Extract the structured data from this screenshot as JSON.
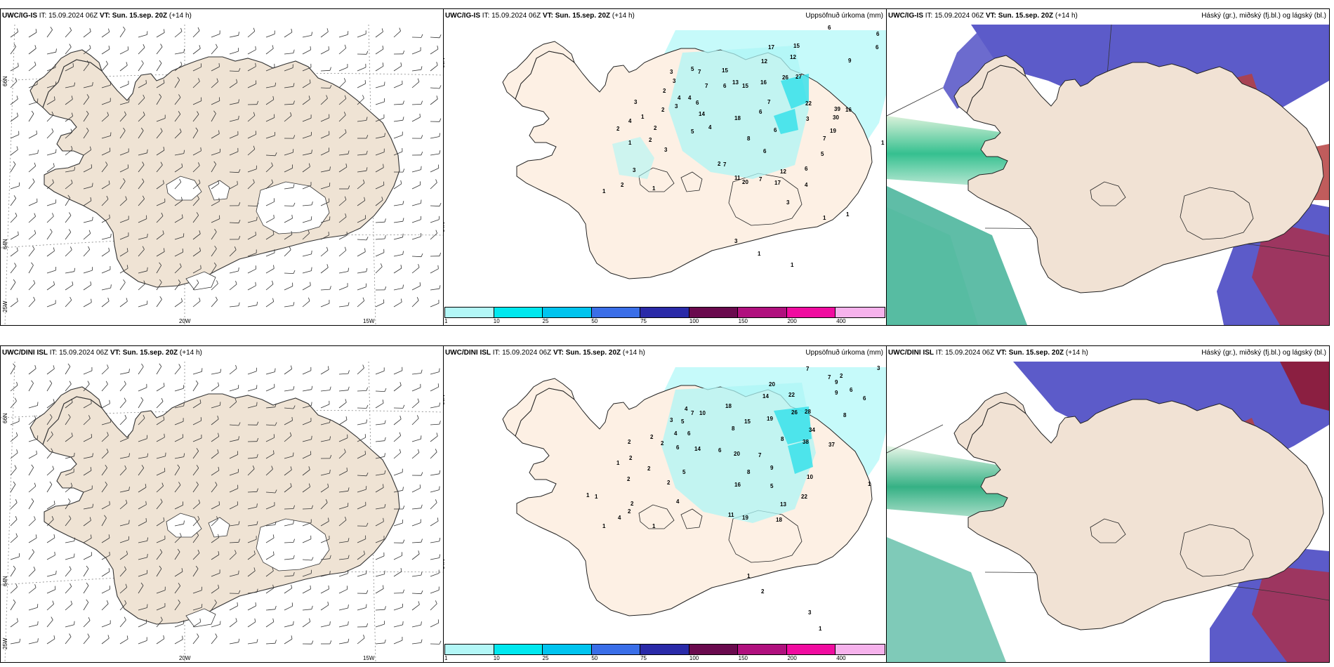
{
  "panels": [
    {
      "id": "r1c1",
      "model": "UWC/IG-IS",
      "it_label": "IT:",
      "it": "15.09.2024 06Z",
      "vt_label": "VT:",
      "vt": "Sun. 15.sep. 20Z",
      "lead": "(+14 h)",
      "field": ""
    },
    {
      "id": "r1c2",
      "model": "UWC/IG-IS",
      "it_label": "IT:",
      "it": "15.09.2024 06Z",
      "vt_label": "VT:",
      "vt": "Sun. 15.sep. 20Z",
      "lead": "(+14 h)",
      "field": "Uppsöfnuð úrkoma (mm)"
    },
    {
      "id": "r1c3",
      "model": "UWC/IG-IS",
      "it_label": "IT:",
      "it": "15.09.2024 06Z",
      "vt_label": "VT:",
      "vt": "Sun. 15.sep. 20Z",
      "lead": "(+14 h)",
      "field": "Háský (gr.), miðský (fj.bl.) og lágský (bl.)"
    },
    {
      "id": "r2c1",
      "model": "UWC/DINI ISL",
      "it_label": "IT:",
      "it": "15.09.2024 06Z",
      "vt_label": "VT:",
      "vt": "Sun. 15.sep. 20Z",
      "lead": "(+14 h)",
      "field": ""
    },
    {
      "id": "r2c2",
      "model": "UWC/DINI ISL",
      "it_label": "IT:",
      "it": "15.09.2024 06Z",
      "vt_label": "VT:",
      "vt": "Sun. 15.sep. 20Z",
      "lead": "(+14 h)",
      "field": "Uppsöfnuð úrkoma (mm)"
    },
    {
      "id": "r2c3",
      "model": "UWC/DINI ISL",
      "it_label": "IT:",
      "it": "15.09.2024 06Z",
      "vt_label": "VT:",
      "vt": "Sun. 15.sep. 20Z",
      "lead": "(+14 h)",
      "field": "Háský (gr.), miðský (fj.bl.) og lágský (bl.)"
    }
  ],
  "axes": {
    "lon_labels": [
      "20W",
      "15W"
    ],
    "lat_labels": [
      "66N",
      "64N"
    ],
    "lon_left": "25W"
  },
  "legend": {
    "colors": [
      "#b3f7f7",
      "#00e8ef",
      "#00c4ef",
      "#3a6ee8",
      "#2a2aa8",
      "#6a0a4e",
      "#b0107e",
      "#f00ca0",
      "#f6b2ec"
    ],
    "ticks": [
      "1",
      "10",
      "25",
      "50",
      "75",
      "100",
      "150",
      "200",
      "400"
    ]
  },
  "precip_top": [
    [
      "6",
      1178,
      42
    ],
    [
      "6",
      1247,
      51
    ],
    [
      "6",
      1246,
      70
    ],
    [
      "9",
      1207,
      89
    ],
    [
      "17",
      1093,
      70
    ],
    [
      "15",
      1129,
      68
    ],
    [
      "12",
      1083,
      90
    ],
    [
      "12",
      1124,
      84
    ],
    [
      "27",
      1132,
      112
    ],
    [
      "26",
      1113,
      113
    ],
    [
      "16",
      1082,
      120
    ],
    [
      "5",
      983,
      101
    ],
    [
      "7",
      993,
      105
    ],
    [
      "15",
      1027,
      103
    ],
    [
      "13",
      1042,
      120
    ],
    [
      "15",
      1056,
      125
    ],
    [
      "3",
      953,
      105
    ],
    [
      "3",
      957,
      118
    ],
    [
      "4",
      964,
      142
    ],
    [
      "2",
      943,
      132
    ],
    [
      "3",
      960,
      154
    ],
    [
      "6",
      1029,
      125
    ],
    [
      "7",
      1003,
      125
    ],
    [
      "4",
      979,
      142
    ],
    [
      "6",
      990,
      149
    ],
    [
      "14",
      994,
      165
    ],
    [
      "5",
      983,
      190
    ],
    [
      "4",
      1008,
      184
    ],
    [
      "7",
      1092,
      148
    ],
    [
      "22",
      1146,
      150
    ],
    [
      "39",
      1187,
      158
    ],
    [
      "16",
      1203,
      159
    ],
    [
      "30",
      1185,
      170
    ],
    [
      "3",
      902,
      148
    ],
    [
      "1",
      912,
      169
    ],
    [
      "2",
      877,
      186
    ],
    [
      "2",
      941,
      159
    ],
    [
      "2",
      930,
      185
    ],
    [
      "4",
      894,
      175
    ],
    [
      "2",
      923,
      202
    ],
    [
      "1",
      894,
      206
    ],
    [
      "3",
      945,
      216
    ],
    [
      "18",
      1045,
      171
    ],
    [
      "6",
      1080,
      162
    ],
    [
      "6",
      1101,
      188
    ],
    [
      "19",
      1181,
      189
    ],
    [
      "8",
      1063,
      200
    ],
    [
      "6",
      1086,
      218
    ],
    [
      "3",
      1147,
      172
    ],
    [
      "7",
      1171,
      200
    ],
    [
      "5",
      1168,
      222
    ],
    [
      "2",
      1021,
      236
    ],
    [
      "7",
      1029,
      237
    ],
    [
      "2",
      883,
      266
    ],
    [
      "3",
      900,
      245
    ],
    [
      "1",
      857,
      275
    ],
    [
      "1",
      928,
      271
    ],
    [
      "11",
      1045,
      256
    ],
    [
      "20",
      1056,
      262
    ],
    [
      "7",
      1080,
      258
    ],
    [
      "12",
      1110,
      247
    ],
    [
      "17",
      1102,
      263
    ],
    [
      "6",
      1145,
      243
    ],
    [
      "3",
      1119,
      291
    ],
    [
      "4",
      1145,
      266
    ],
    [
      "1",
      1254,
      206
    ],
    [
      "1",
      1204,
      308
    ],
    [
      "1",
      1171,
      313
    ],
    [
      "3",
      1045,
      346
    ],
    [
      "1",
      1078,
      364
    ],
    [
      "1",
      1125,
      380
    ]
  ],
  "precip_bot": [
    [
      "3",
      1248,
      527
    ],
    [
      "7",
      1147,
      528
    ],
    [
      "7",
      1178,
      540
    ],
    [
      "9",
      1188,
      547
    ],
    [
      "9",
      1188,
      562
    ],
    [
      "6",
      1209,
      558
    ],
    [
      "6",
      1228,
      570
    ],
    [
      "14",
      1085,
      567
    ],
    [
      "18",
      1032,
      581
    ],
    [
      "15",
      1059,
      603
    ],
    [
      "19",
      1091,
      599
    ],
    [
      "26",
      1126,
      590
    ],
    [
      "28",
      1145,
      589
    ],
    [
      "8",
      1200,
      594
    ],
    [
      "8",
      1041,
      613
    ],
    [
      "2",
      1195,
      538
    ],
    [
      "20",
      1094,
      550
    ],
    [
      "22",
      1122,
      565
    ],
    [
      "4",
      974,
      585
    ],
    [
      "7",
      983,
      591
    ],
    [
      "10",
      995,
      591
    ],
    [
      "5",
      969,
      603
    ],
    [
      "6",
      978,
      620
    ],
    [
      "4",
      959,
      620
    ],
    [
      "3",
      953,
      601
    ],
    [
      "2",
      925,
      625
    ],
    [
      "2",
      940,
      634
    ],
    [
      "2",
      893,
      632
    ],
    [
      "1",
      877,
      662
    ],
    [
      "2",
      895,
      655
    ],
    [
      "14",
      988,
      642
    ],
    [
      "6",
      1022,
      644
    ],
    [
      "20",
      1044,
      649
    ],
    [
      "7",
      1079,
      651
    ],
    [
      "34",
      1151,
      615
    ],
    [
      "38",
      1142,
      632
    ],
    [
      "37",
      1179,
      636
    ],
    [
      "8",
      1111,
      628
    ],
    [
      "6",
      962,
      640
    ],
    [
      "5",
      971,
      675
    ],
    [
      "2",
      921,
      670
    ],
    [
      "2",
      949,
      690
    ],
    [
      "2",
      892,
      685
    ],
    [
      "2",
      897,
      720
    ],
    [
      "1",
      834,
      708
    ],
    [
      "1",
      846,
      710
    ],
    [
      "1",
      857,
      752
    ],
    [
      "4",
      879,
      740
    ],
    [
      "2",
      893,
      731
    ],
    [
      "16",
      1045,
      693
    ],
    [
      "8",
      1063,
      675
    ],
    [
      "9",
      1096,
      669
    ],
    [
      "5",
      1096,
      695
    ],
    [
      "10",
      1148,
      682
    ],
    [
      "22",
      1140,
      710
    ],
    [
      "13",
      1110,
      721
    ],
    [
      "11",
      1036,
      736
    ],
    [
      "19",
      1056,
      740
    ],
    [
      "18",
      1104,
      743
    ],
    [
      "4",
      962,
      717
    ],
    [
      "1",
      928,
      752
    ],
    [
      "1",
      1235,
      692
    ],
    [
      "3",
      1150,
      875
    ],
    [
      "1",
      1165,
      898
    ],
    [
      "2",
      1083,
      845
    ],
    [
      "1",
      1063,
      823
    ]
  ]
}
